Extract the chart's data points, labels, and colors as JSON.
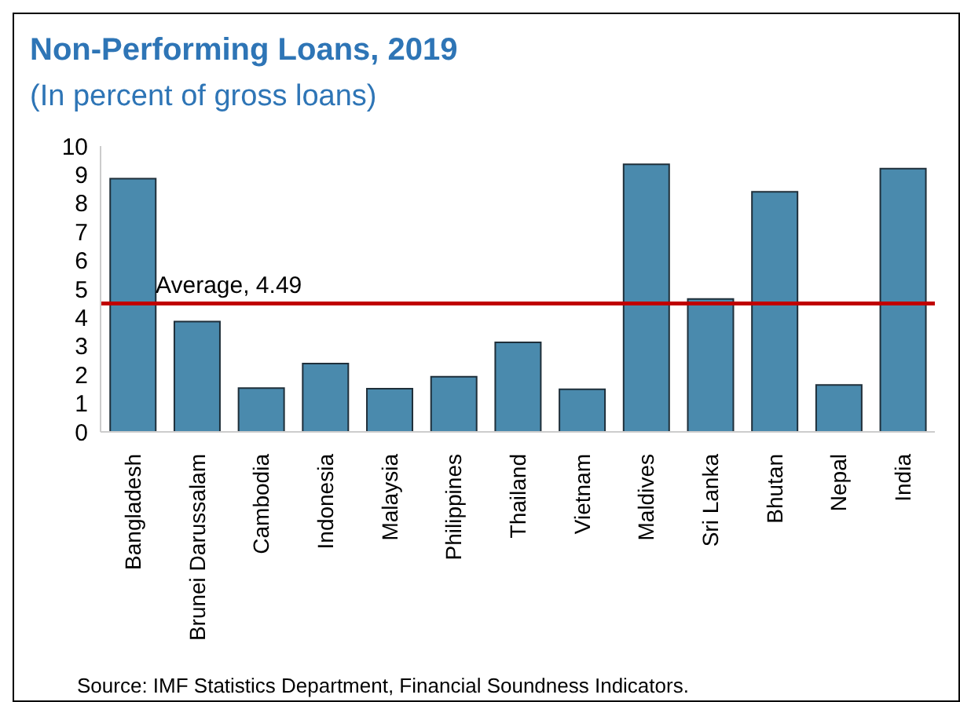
{
  "chart_data": {
    "type": "bar",
    "title": "Non-Performing Loans, 2019",
    "subtitle": "(In percent of gross loans)",
    "categories": [
      "Bangladesh",
      "Brunei Darussalam",
      "Cambodia",
      "Indonesia",
      "Malaysia",
      "Philippines",
      "Thailand",
      "Vietnam",
      "Maldives",
      "Sri Lanka",
      "Bhutan",
      "Nepal",
      "India"
    ],
    "values": [
      8.86,
      3.86,
      1.53,
      2.39,
      1.51,
      1.93,
      3.13,
      1.49,
      9.36,
      4.65,
      8.4,
      1.64,
      9.21
    ],
    "color": "#4a8aad",
    "ylim": [
      0,
      10
    ],
    "yticks": [
      0,
      1,
      2,
      3,
      4,
      5,
      6,
      7,
      8,
      9,
      10
    ],
    "grid": false,
    "ref_lines": [
      {
        "axis": "y",
        "value": 4.49,
        "label": "Average, 4.49",
        "color": "#c00000"
      }
    ],
    "annotations": [
      "Source: IMF Statistics Department, Financial Soundness Indicators."
    ]
  }
}
